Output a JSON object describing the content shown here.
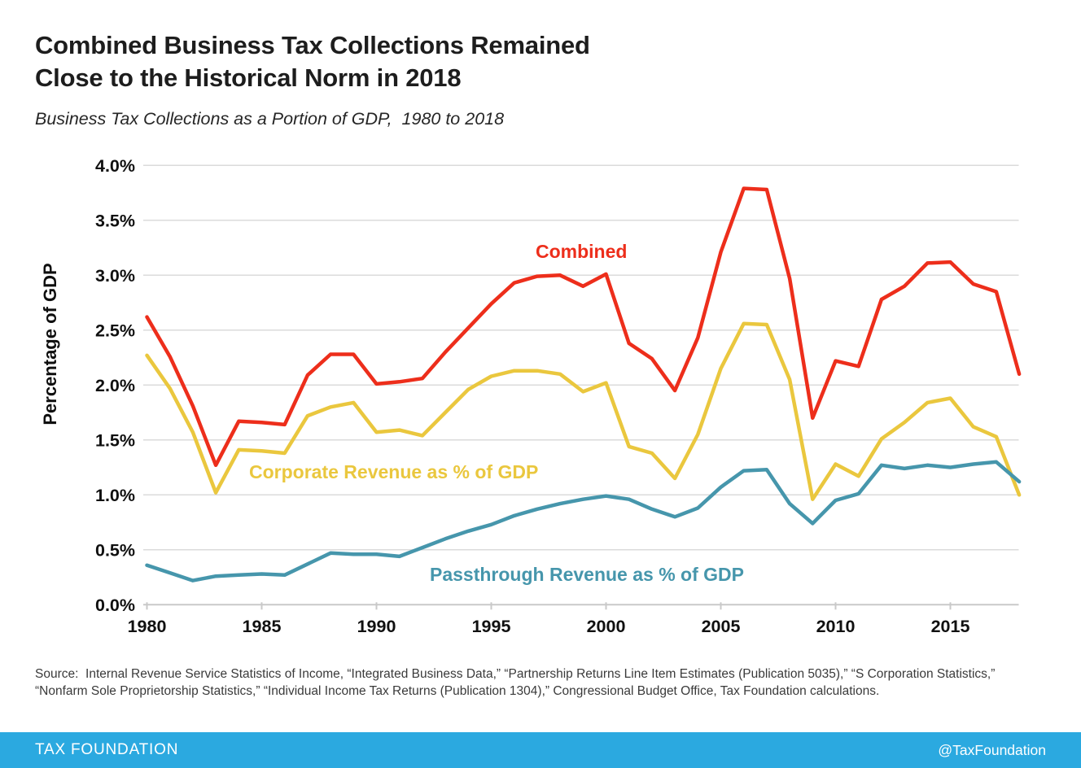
{
  "header": {
    "title_line1": "Combined Business Tax Collections Remained",
    "title_line2": "Close to the Historical Norm in 2018",
    "subtitle": "Business Tax Collections as a Portion of GDP,  1980 to 2018"
  },
  "chart_data": {
    "type": "line",
    "title": "Combined Business Tax Collections Remained Close to the Historical Norm in 2018",
    "subtitle": "Business Tax Collections as a Portion of GDP, 1980 to 2018",
    "xlabel": "",
    "ylabel": "Percentage of GDP",
    "xlim": [
      1980,
      2018
    ],
    "ylim": [
      0,
      4.0
    ],
    "grid": "horizontal",
    "legend_position": "inline-annotations",
    "x_ticks": [
      1980,
      1985,
      1990,
      1995,
      2000,
      2005,
      2010,
      2015
    ],
    "y_ticks": [
      {
        "value": 0.0,
        "label": "0.0%"
      },
      {
        "value": 0.5,
        "label": "0.5%"
      },
      {
        "value": 1.0,
        "label": "1.0%"
      },
      {
        "value": 1.5,
        "label": "1.5%"
      },
      {
        "value": 2.0,
        "label": "2.0%"
      },
      {
        "value": 2.5,
        "label": "2.5%"
      },
      {
        "value": 3.0,
        "label": "3.0%"
      },
      {
        "value": 3.5,
        "label": "3.5%"
      },
      {
        "value": 4.0,
        "label": "4.0%"
      }
    ],
    "x": [
      1980,
      1981,
      1982,
      1983,
      1984,
      1985,
      1986,
      1987,
      1988,
      1989,
      1990,
      1991,
      1992,
      1993,
      1994,
      1995,
      1996,
      1997,
      1998,
      1999,
      2000,
      2001,
      2002,
      2003,
      2004,
      2005,
      2006,
      2007,
      2008,
      2009,
      2010,
      2011,
      2012,
      2013,
      2014,
      2015,
      2016,
      2017,
      2018
    ],
    "series": [
      {
        "name": "Corporate Revenue as % of GDP",
        "color": "#EAC73E",
        "values": [
          2.27,
          1.97,
          1.57,
          1.02,
          1.41,
          1.4,
          1.38,
          1.72,
          1.8,
          1.84,
          1.57,
          1.59,
          1.54,
          1.75,
          1.96,
          2.08,
          2.13,
          2.13,
          2.1,
          1.94,
          2.02,
          1.44,
          1.38,
          1.15,
          1.55,
          2.15,
          2.56,
          2.55,
          2.05,
          0.96,
          1.28,
          1.17,
          1.51,
          1.66,
          1.84,
          1.88,
          1.62,
          1.53,
          1.0
        ]
      },
      {
        "name": "Passthrough Revenue as % of GDP",
        "color": "#4696AC",
        "values": [
          0.36,
          0.29,
          0.22,
          0.26,
          0.27,
          0.28,
          0.27,
          0.37,
          0.47,
          0.46,
          0.46,
          0.44,
          0.52,
          0.6,
          0.67,
          0.73,
          0.81,
          0.87,
          0.92,
          0.96,
          0.99,
          0.96,
          0.87,
          0.8,
          0.88,
          1.07,
          1.22,
          1.23,
          0.92,
          0.74,
          0.95,
          1.01,
          1.27,
          1.24,
          1.27,
          1.25,
          1.28,
          1.3,
          1.12
        ]
      },
      {
        "name": "Combined",
        "color": "#ED2E1B",
        "values": [
          2.62,
          2.26,
          1.81,
          1.27,
          1.67,
          1.66,
          1.64,
          2.09,
          2.28,
          2.28,
          2.01,
          2.03,
          2.06,
          2.3,
          2.52,
          2.74,
          2.93,
          2.99,
          3.0,
          2.9,
          3.01,
          2.38,
          2.24,
          1.95,
          2.43,
          3.21,
          3.79,
          3.78,
          2.97,
          1.7,
          2.22,
          2.17,
          2.78,
          2.9,
          3.11,
          3.12,
          2.92,
          2.85,
          2.1
        ]
      }
    ],
    "annotations": {
      "combined_label": "Combined",
      "corporate_label": "Corporate Revenue as % of GDP",
      "passthrough_label": "Passthrough Revenue as % of GDP"
    }
  },
  "colors": {
    "combined": "#ED2E1B",
    "corporate": "#EAC73E",
    "passthrough": "#4696AC",
    "gridline": "#DBDBDB",
    "axis": "#C9C9C9",
    "tick_text": "#101010",
    "footer_bg": "#2BA9E0"
  },
  "source": {
    "text": "Source:  Internal Revenue Service Statistics of Income, “Integrated Business Data,” “Partnership Returns Line Item Estimates (Publication 5035),” “S Corporation Statistics,” “Nonfarm Sole Proprietorship Statistics,” “Individual Income Tax Returns (Publication 1304),” Congressional Budget Office, Tax Foundation calculations."
  },
  "footer": {
    "brand": "TAX FOUNDATION",
    "handle": "@TaxFoundation"
  }
}
